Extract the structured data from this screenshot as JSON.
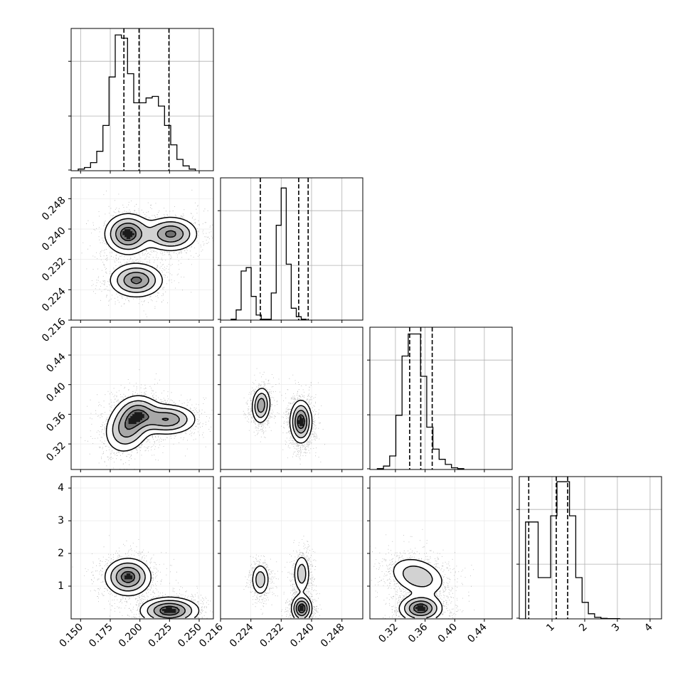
{
  "chart_data": {
    "type": "corner",
    "params": [
      {
        "xlim": [
          0.142,
          0.262
        ],
        "ticks": [
          0.15,
          0.175,
          0.2,
          0.225,
          0.25
        ],
        "tick_labels": [
          "0.150",
          "0.175",
          "0.200",
          "0.225",
          "0.250"
        ]
      },
      {
        "xlim": [
          0.216,
          0.2535
        ],
        "ticks": [
          0.216,
          0.224,
          0.232,
          0.24,
          0.248
        ],
        "tick_labels": [
          "0.216",
          "0.224",
          "0.232",
          "0.240",
          "0.248"
        ]
      },
      {
        "xlim": [
          0.2855,
          0.4775
        ],
        "ticks": [
          0.32,
          0.36,
          0.4,
          0.44
        ],
        "tick_labels": [
          "0.32",
          "0.36",
          "0.40",
          "0.44"
        ]
      },
      {
        "xlim": [
          0.0,
          4.35
        ],
        "ticks": [
          1,
          2,
          3,
          4
        ],
        "tick_labels": [
          "1",
          "2",
          "3",
          "4"
        ]
      }
    ],
    "diagonal": [
      {
        "bins": {
          "start": 0.148,
          "width": 0.0052,
          "counts": [
            5,
            10,
            25,
            60,
            140,
            290,
            420,
            410,
            300,
            210,
            210,
            225,
            230,
            200,
            140,
            80,
            35,
            15,
            5
          ]
        },
        "ymax": 440,
        "quantiles": [
          0.1865,
          0.1993,
          0.2245
        ]
      },
      {
        "bins": {
          "start": 0.2188,
          "width": 0.00132,
          "counts": [
            5,
            60,
            290,
            310,
            140,
            30,
            5,
            5,
            160,
            560,
            780,
            330,
            70,
            20,
            5
          ]
        },
        "ymax": 840,
        "quantiles": [
          0.2265,
          0.2366,
          0.2391
        ]
      },
      {
        "bins": {
          "start": 0.2955,
          "width": 0.00834,
          "counts": [
            5,
            20,
            80,
            320,
            670,
            800,
            800,
            550,
            250,
            120,
            60,
            30,
            10,
            5
          ]
        },
        "ymax": 840,
        "quantiles": [
          0.3392,
          0.3541,
          0.3696
        ]
      },
      {
        "bins": {
          "start": 0.0,
          "width": 0.192,
          "counts": [
            0,
            940,
            940,
            400,
            400,
            1000,
            1330,
            1330,
            1000,
            400,
            160,
            50,
            15,
            5,
            3,
            2
          ]
        },
        "ymax": 1380,
        "quantiles": [
          0.29,
          1.13,
          1.48
        ]
      }
    ],
    "pairs": [
      {
        "x": 0,
        "y": 1,
        "components": [
          {
            "mx": 0.19,
            "my": 0.2387,
            "sx": 0.0095,
            "sy": 0.0026,
            "r": 0.0,
            "w": 1.0
          },
          {
            "mx": 0.226,
            "my": 0.2387,
            "sx": 0.011,
            "sy": 0.0022,
            "r": 0.0,
            "w": 0.85
          },
          {
            "mx": 0.197,
            "my": 0.2265,
            "sx": 0.011,
            "sy": 0.0022,
            "r": 0.0,
            "w": 0.85
          }
        ]
      },
      {
        "x": 0,
        "y": 2,
        "components": [
          {
            "mx": 0.19,
            "my": 0.343,
            "sx": 0.0095,
            "sy": 0.017,
            "r": 0.2,
            "w": 1.0
          },
          {
            "mx": 0.223,
            "my": 0.353,
            "sx": 0.012,
            "sy": 0.01,
            "r": 0.0,
            "w": 0.8
          },
          {
            "mx": 0.2,
            "my": 0.362,
            "sx": 0.009,
            "sy": 0.012,
            "r": 0.0,
            "w": 0.5
          }
        ]
      },
      {
        "x": 1,
        "y": 2,
        "components": [
          {
            "mx": 0.2267,
            "my": 0.372,
            "sx": 0.0012,
            "sy": 0.012,
            "r": 0.1,
            "w": 0.55
          },
          {
            "mx": 0.2372,
            "my": 0.35,
            "sx": 0.0014,
            "sy": 0.014,
            "r": 0.0,
            "w": 1.0
          }
        ]
      },
      {
        "x": 0,
        "y": 3,
        "components": [
          {
            "mx": 0.19,
            "my": 1.28,
            "sx": 0.0095,
            "sy": 0.28,
            "r": 0.0,
            "w": 1.0
          },
          {
            "mx": 0.225,
            "my": 0.25,
            "sx": 0.012,
            "sy": 0.2,
            "r": 0.0,
            "w": 0.95
          }
        ]
      },
      {
        "x": 1,
        "y": 3,
        "components": [
          {
            "mx": 0.2265,
            "my": 1.2,
            "sx": 0.0012,
            "sy": 0.25,
            "r": 0.0,
            "w": 0.55
          },
          {
            "mx": 0.2374,
            "my": 1.38,
            "sx": 0.0011,
            "sy": 0.3,
            "r": 0.0,
            "w": 0.6
          },
          {
            "mx": 0.2374,
            "my": 0.32,
            "sx": 0.0013,
            "sy": 0.2,
            "r": 0.0,
            "w": 1.0
          }
        ]
      },
      {
        "x": 2,
        "y": 3,
        "components": [
          {
            "mx": 0.35,
            "my": 1.3,
            "sx": 0.019,
            "sy": 0.3,
            "r": -0.3,
            "w": 1.0
          },
          {
            "mx": 0.354,
            "my": 0.32,
            "sx": 0.014,
            "sy": 0.2,
            "r": 0.0,
            "w": 1.0
          }
        ]
      }
    ],
    "grid": true
  }
}
